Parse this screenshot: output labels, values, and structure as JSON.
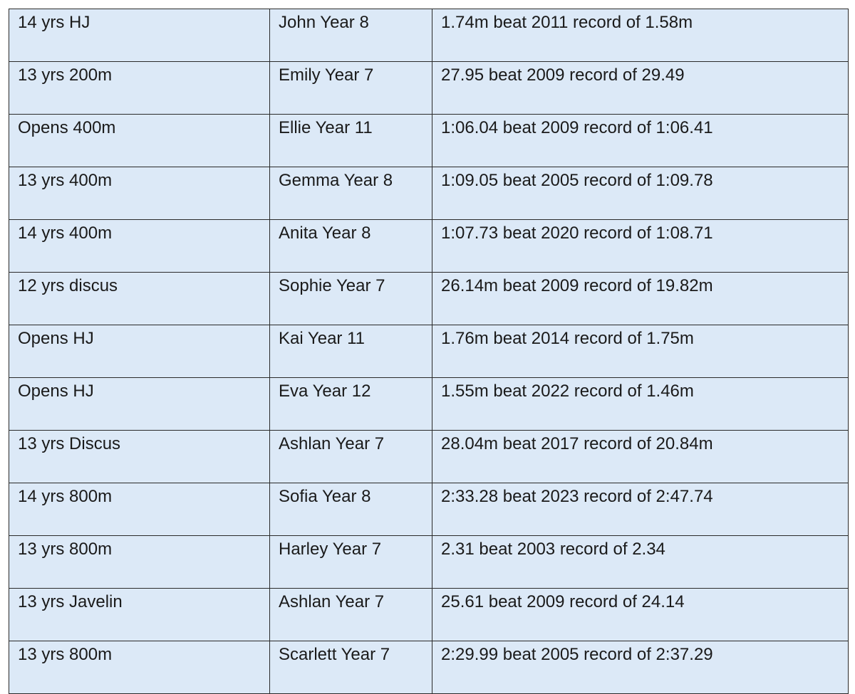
{
  "records": [
    {
      "event": "14 yrs HJ",
      "athlete": "John Year 8",
      "result": "1.74m beat 2011 record of 1.58m"
    },
    {
      "event": "13 yrs 200m",
      "athlete": "Emily Year 7",
      "result": "27.95 beat 2009 record of 29.49"
    },
    {
      "event": "Opens 400m",
      "athlete": "Ellie Year 11",
      "result": "1:06.04 beat 2009 record of 1:06.41"
    },
    {
      "event": "13 yrs 400m",
      "athlete": "Gemma Year 8",
      "result": "1:09.05 beat 2005 record of 1:09.78"
    },
    {
      "event": "14 yrs 400m",
      "athlete": "Anita Year 8",
      "result": "1:07.73 beat 2020 record of 1:08.71"
    },
    {
      "event": "12 yrs discus",
      "athlete": "Sophie Year 7",
      "result": "26.14m beat 2009 record of 19.82m"
    },
    {
      "event": "Opens HJ",
      "athlete": "Kai Year 11",
      "result": "1.76m beat 2014 record of 1.75m"
    },
    {
      "event": "Opens HJ",
      "athlete": "Eva Year 12",
      "result": "1.55m beat 2022 record of 1.46m"
    },
    {
      "event": "13 yrs Discus",
      "athlete": "Ashlan Year 7",
      "result": "28.04m beat 2017 record of 20.84m"
    },
    {
      "event": "14 yrs 800m",
      "athlete": "Sofia Year 8",
      "result": "2:33.28 beat 2023 record of 2:47.74"
    },
    {
      "event": "13 yrs 800m",
      "athlete": "Harley Year 7",
      "result": "2.31 beat 2003 record of 2.34"
    },
    {
      "event": "13 yrs Javelin",
      "athlete": "Ashlan Year 7",
      "result": "25.61 beat 2009 record of 24.14"
    },
    {
      "event": "13 yrs 800m",
      "athlete": "Scarlett Year 7",
      "result": "2:29.99 beat 2005 record of 2:37.29"
    }
  ],
  "colors": {
    "cell_background": "#dce9f7",
    "border": "#2a2a2a",
    "text": "#1a1a1a"
  }
}
